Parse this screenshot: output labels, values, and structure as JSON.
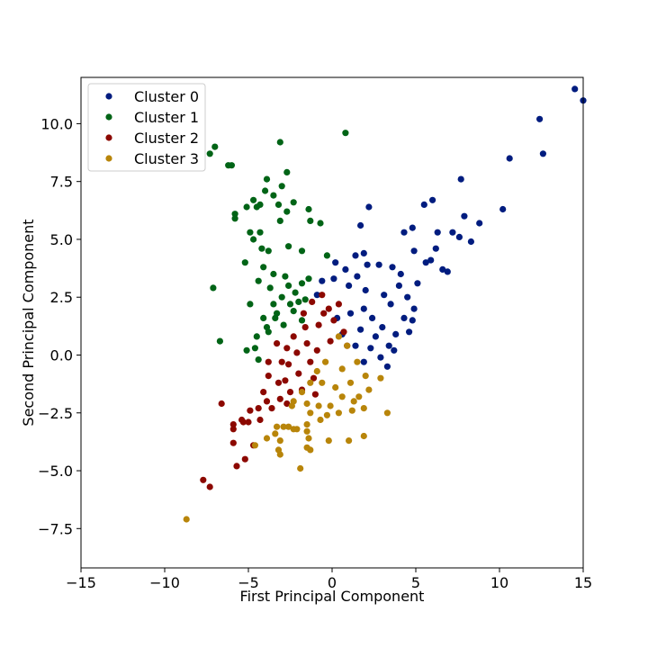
{
  "chart_data": {
    "type": "scatter",
    "title": "",
    "xlabel": "First Principal Component",
    "ylabel": "Second Principal Component",
    "xlim": [
      -15,
      15
    ],
    "ylim": [
      -9.2,
      12.0
    ],
    "xticks": [
      -15,
      -10,
      -5,
      0,
      5,
      10,
      15
    ],
    "yticks": [
      -7.5,
      -5.0,
      -2.5,
      0.0,
      2.5,
      5.0,
      7.5,
      10.0
    ],
    "xtick_labels": [
      "−15",
      "−10",
      "−5",
      "0",
      "5",
      "10",
      "15"
    ],
    "ytick_labels": [
      "−7.5",
      "−5.0",
      "−2.5",
      "0.0",
      "2.5",
      "5.0",
      "7.5",
      "10.0"
    ],
    "grid": false,
    "legend_position": "top-left",
    "series": [
      {
        "name": "Cluster 0",
        "color": "#001c7f",
        "points": [
          [
            14.5,
            11.5
          ],
          [
            15.0,
            11.0
          ],
          [
            12.4,
            10.2
          ],
          [
            12.6,
            8.7
          ],
          [
            10.6,
            8.5
          ],
          [
            7.7,
            7.6
          ],
          [
            6.0,
            6.7
          ],
          [
            5.5,
            6.5
          ],
          [
            10.2,
            6.3
          ],
          [
            8.8,
            5.7
          ],
          [
            7.9,
            6.0
          ],
          [
            7.2,
            5.3
          ],
          [
            6.3,
            5.3
          ],
          [
            4.8,
            5.5
          ],
          [
            4.3,
            5.3
          ],
          [
            7.6,
            5.1
          ],
          [
            8.3,
            4.9
          ],
          [
            6.2,
            4.6
          ],
          [
            4.9,
            4.5
          ],
          [
            5.9,
            4.1
          ],
          [
            5.6,
            4.0
          ],
          [
            6.6,
            3.7
          ],
          [
            6.9,
            3.6
          ],
          [
            1.7,
            5.6
          ],
          [
            2.2,
            6.4
          ],
          [
            1.9,
            4.4
          ],
          [
            1.4,
            4.3
          ],
          [
            2.1,
            3.9
          ],
          [
            1.5,
            3.4
          ],
          [
            2.8,
            3.9
          ],
          [
            3.6,
            3.8
          ],
          [
            4.1,
            3.5
          ],
          [
            5.1,
            3.1
          ],
          [
            4.5,
            2.5
          ],
          [
            4.9,
            2.0
          ],
          [
            4.8,
            1.5
          ],
          [
            4.6,
            1.0
          ],
          [
            3.4,
            0.4
          ],
          [
            3.7,
            0.2
          ],
          [
            3.3,
            -0.5
          ],
          [
            0.2,
            4.0
          ],
          [
            0.8,
            3.7
          ],
          [
            0.1,
            3.3
          ],
          [
            -0.6,
            3.2
          ],
          [
            -0.9,
            2.6
          ],
          [
            1.0,
            3.0
          ],
          [
            1.9,
            2.0
          ],
          [
            2.4,
            1.6
          ],
          [
            3.0,
            1.2
          ],
          [
            1.7,
            1.1
          ],
          [
            2.6,
            0.8
          ],
          [
            0.3,
            1.6
          ],
          [
            1.1,
            1.8
          ],
          [
            2.0,
            2.8
          ],
          [
            3.1,
            2.6
          ],
          [
            2.3,
            0.3
          ],
          [
            1.4,
            0.4
          ],
          [
            0.6,
            0.9
          ],
          [
            3.8,
            0.9
          ],
          [
            4.3,
            1.6
          ],
          [
            2.9,
            -0.1
          ],
          [
            1.9,
            -0.3
          ],
          [
            3.5,
            2.2
          ],
          [
            4.0,
            3.0
          ]
        ]
      },
      {
        "name": "Cluster 1",
        "color": "#006416",
        "points": [
          [
            -3.1,
            9.2
          ],
          [
            0.8,
            9.6
          ],
          [
            -7.0,
            9.0
          ],
          [
            -7.3,
            8.7
          ],
          [
            -6.2,
            8.2
          ],
          [
            -6.0,
            8.2
          ],
          [
            -3.9,
            7.6
          ],
          [
            -2.7,
            7.9
          ],
          [
            -3.0,
            7.3
          ],
          [
            -4.0,
            7.1
          ],
          [
            -3.5,
            6.9
          ],
          [
            -4.7,
            6.7
          ],
          [
            -4.3,
            6.5
          ],
          [
            -5.1,
            6.4
          ],
          [
            -4.5,
            6.4
          ],
          [
            -2.3,
            6.6
          ],
          [
            -3.2,
            6.5
          ],
          [
            -2.7,
            6.2
          ],
          [
            -1.4,
            6.3
          ],
          [
            -5.8,
            6.1
          ],
          [
            -5.8,
            5.9
          ],
          [
            -3.1,
            5.8
          ],
          [
            -1.3,
            5.8
          ],
          [
            -0.7,
            5.7
          ],
          [
            -4.9,
            5.3
          ],
          [
            -4.7,
            5.0
          ],
          [
            -4.3,
            5.3
          ],
          [
            -2.6,
            4.7
          ],
          [
            -1.8,
            4.5
          ],
          [
            -3.8,
            4.5
          ],
          [
            -4.2,
            4.6
          ],
          [
            -0.3,
            4.3
          ],
          [
            -5.2,
            4.0
          ],
          [
            -4.1,
            3.8
          ],
          [
            -3.5,
            3.5
          ],
          [
            -4.4,
            3.2
          ],
          [
            -3.7,
            2.9
          ],
          [
            -2.6,
            3.0
          ],
          [
            -3.0,
            2.5
          ],
          [
            -2.2,
            2.7
          ],
          [
            -1.8,
            3.1
          ],
          [
            -1.4,
            3.3
          ],
          [
            -2.5,
            2.2
          ],
          [
            -3.3,
            1.8
          ],
          [
            -3.4,
            1.6
          ],
          [
            -2.9,
            1.3
          ],
          [
            -4.1,
            1.6
          ],
          [
            -3.8,
            1.0
          ],
          [
            -2.0,
            2.3
          ],
          [
            -1.6,
            2.4
          ],
          [
            -2.8,
            3.4
          ],
          [
            -3.5,
            2.2
          ],
          [
            -7.1,
            2.9
          ],
          [
            -4.9,
            2.2
          ],
          [
            -6.7,
            0.6
          ],
          [
            -4.6,
            0.3
          ],
          [
            -5.1,
            0.2
          ],
          [
            -4.4,
            -0.2
          ],
          [
            -4.5,
            0.8
          ],
          [
            -3.9,
            1.2
          ],
          [
            -2.3,
            1.9
          ],
          [
            -1.8,
            1.5
          ]
        ]
      },
      {
        "name": "Cluster 2",
        "color": "#8c0800",
        "points": [
          [
            -0.6,
            2.6
          ],
          [
            0.4,
            2.2
          ],
          [
            -0.2,
            2.0
          ],
          [
            -1.2,
            2.3
          ],
          [
            -1.7,
            1.8
          ],
          [
            -0.8,
            1.3
          ],
          [
            0.1,
            1.5
          ],
          [
            0.7,
            1.0
          ],
          [
            -1.6,
            1.2
          ],
          [
            -2.3,
            0.8
          ],
          [
            -1.5,
            0.5
          ],
          [
            -0.9,
            0.2
          ],
          [
            -0.1,
            0.6
          ],
          [
            0.9,
            0.4
          ],
          [
            -2.1,
            0.1
          ],
          [
            -1.3,
            -0.3
          ],
          [
            -2.6,
            -0.4
          ],
          [
            -2.0,
            -0.8
          ],
          [
            -1.1,
            -1.0
          ],
          [
            -1.8,
            -1.5
          ],
          [
            -2.5,
            -1.6
          ],
          [
            -3.2,
            -1.2
          ],
          [
            -3.8,
            -0.3
          ],
          [
            -3.8,
            -0.9
          ],
          [
            -3.0,
            -0.3
          ],
          [
            -2.7,
            0.3
          ],
          [
            -1.0,
            -1.7
          ],
          [
            -4.1,
            -1.6
          ],
          [
            -3.1,
            -1.9
          ],
          [
            -3.6,
            -2.3
          ],
          [
            -4.4,
            -2.3
          ],
          [
            -3.9,
            -2.0
          ],
          [
            -2.7,
            -2.1
          ],
          [
            -6.6,
            -2.1
          ],
          [
            -4.9,
            -2.4
          ],
          [
            -4.3,
            -2.8
          ],
          [
            -5.4,
            -2.8
          ],
          [
            -5.9,
            -3.0
          ],
          [
            -5.9,
            -3.2
          ],
          [
            -5.3,
            -2.9
          ],
          [
            -5.0,
            -2.9
          ],
          [
            -4.7,
            -3.9
          ],
          [
            -5.9,
            -3.8
          ],
          [
            -5.2,
            -4.5
          ],
          [
            -5.7,
            -4.8
          ],
          [
            -7.7,
            -5.4
          ],
          [
            -7.3,
            -5.7
          ],
          [
            -0.5,
            1.8
          ],
          [
            -2.8,
            -1.1
          ],
          [
            -3.3,
            0.5
          ]
        ]
      },
      {
        "name": "Cluster 3",
        "color": "#b8850a",
        "points": [
          [
            0.4,
            0.8
          ],
          [
            0.9,
            0.4
          ],
          [
            1.5,
            -0.3
          ],
          [
            2.0,
            -0.9
          ],
          [
            1.6,
            -1.8
          ],
          [
            1.9,
            -2.3
          ],
          [
            0.6,
            -0.6
          ],
          [
            -0.4,
            -0.3
          ],
          [
            -0.9,
            -0.7
          ],
          [
            -1.3,
            -1.2
          ],
          [
            -1.8,
            -1.6
          ],
          [
            -1.5,
            -2.1
          ],
          [
            -0.8,
            -2.2
          ],
          [
            -0.3,
            -2.6
          ],
          [
            0.4,
            -2.5
          ],
          [
            1.3,
            -2.0
          ],
          [
            2.2,
            -1.5
          ],
          [
            -2.3,
            -2.0
          ],
          [
            -2.4,
            -2.2
          ],
          [
            -1.3,
            -2.5
          ],
          [
            -0.7,
            -2.8
          ],
          [
            -0.1,
            -2.2
          ],
          [
            1.2,
            -2.4
          ],
          [
            2.9,
            -1.0
          ],
          [
            -2.1,
            -3.2
          ],
          [
            -2.6,
            -3.1
          ],
          [
            -2.9,
            -3.1
          ],
          [
            -3.3,
            -3.1
          ],
          [
            -3.4,
            -3.4
          ],
          [
            -3.1,
            -3.7
          ],
          [
            -2.3,
            -3.2
          ],
          [
            -1.5,
            -3.0
          ],
          [
            -1.5,
            -3.3
          ],
          [
            -1.4,
            -3.6
          ],
          [
            -0.2,
            -3.7
          ],
          [
            1.0,
            -3.7
          ],
          [
            1.9,
            -3.5
          ],
          [
            3.3,
            -2.5
          ],
          [
            -3.9,
            -3.6
          ],
          [
            -4.6,
            -3.9
          ],
          [
            -3.2,
            -4.1
          ],
          [
            -3.1,
            -4.3
          ],
          [
            -1.5,
            -4.0
          ],
          [
            -1.3,
            -4.1
          ],
          [
            -1.9,
            -4.9
          ],
          [
            -8.7,
            -7.1
          ],
          [
            0.2,
            -1.4
          ],
          [
            0.6,
            -1.8
          ],
          [
            -0.6,
            -1.2
          ],
          [
            1.1,
            -1.2
          ]
        ]
      }
    ]
  }
}
